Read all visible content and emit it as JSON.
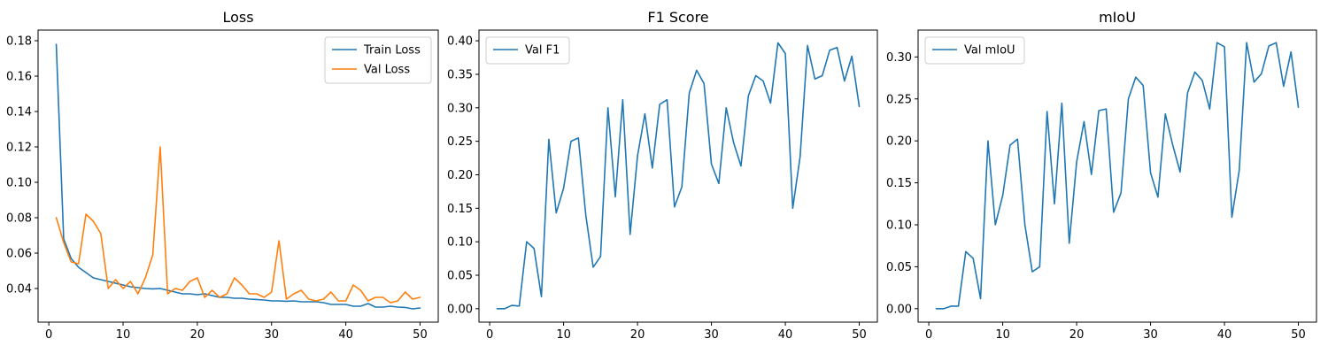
{
  "chart_data": [
    {
      "type": "line",
      "title": "Loss",
      "xlabel": "",
      "ylabel": "",
      "xlim": [
        -1.45,
        52.45
      ],
      "ylim": [
        0.021,
        0.186
      ],
      "xticks": [
        0,
        10,
        20,
        30,
        40,
        50
      ],
      "yticks": [
        0.04,
        0.06,
        0.08,
        0.1,
        0.12,
        0.14,
        0.16,
        0.18
      ],
      "ytick_labels": [
        "0.04",
        "0.06",
        "0.08",
        "0.10",
        "0.12",
        "0.14",
        "0.16",
        "0.18"
      ],
      "xtick_labels": [
        "0",
        "10",
        "20",
        "30",
        "40",
        "50"
      ],
      "grid": false,
      "legend_position": "top-right",
      "x": [
        1,
        2,
        3,
        4,
        5,
        6,
        7,
        8,
        9,
        10,
        11,
        12,
        13,
        14,
        15,
        16,
        17,
        18,
        19,
        20,
        21,
        22,
        23,
        24,
        25,
        26,
        27,
        28,
        29,
        30,
        31,
        32,
        33,
        34,
        35,
        36,
        37,
        38,
        39,
        40,
        41,
        42,
        43,
        44,
        45,
        46,
        47,
        48,
        49,
        50
      ],
      "series": [
        {
          "name": "Train Loss",
          "color": "#1f77b4",
          "values": [
            0.178,
            0.068,
            0.057,
            0.052,
            0.049,
            0.046,
            0.045,
            0.044,
            0.043,
            0.042,
            0.041,
            0.0405,
            0.04,
            0.0398,
            0.04,
            0.039,
            0.038,
            0.037,
            0.037,
            0.0365,
            0.037,
            0.036,
            0.035,
            0.035,
            0.0345,
            0.0345,
            0.034,
            0.0338,
            0.0335,
            0.033,
            0.033,
            0.0328,
            0.033,
            0.0325,
            0.0325,
            0.0325,
            0.032,
            0.031,
            0.031,
            0.031,
            0.03,
            0.03,
            0.0315,
            0.0295,
            0.0295,
            0.03,
            0.0295,
            0.0293,
            0.0285,
            0.029
          ]
        },
        {
          "name": "Val Loss",
          "color": "#ff7f0e",
          "values": [
            0.08,
            0.066,
            0.055,
            0.054,
            0.082,
            0.078,
            0.071,
            0.04,
            0.045,
            0.04,
            0.044,
            0.037,
            0.046,
            0.059,
            0.12,
            0.037,
            0.04,
            0.039,
            0.044,
            0.046,
            0.035,
            0.039,
            0.035,
            0.037,
            0.046,
            0.042,
            0.037,
            0.037,
            0.035,
            0.038,
            0.067,
            0.034,
            0.037,
            0.039,
            0.034,
            0.033,
            0.034,
            0.038,
            0.033,
            0.033,
            0.042,
            0.039,
            0.033,
            0.035,
            0.035,
            0.032,
            0.033,
            0.038,
            0.034,
            0.035
          ]
        }
      ]
    },
    {
      "type": "line",
      "title": "F1 Score",
      "xlabel": "",
      "ylabel": "",
      "xlim": [
        -1.45,
        52.45
      ],
      "ylim": [
        -0.02,
        0.416
      ],
      "xticks": [
        0,
        10,
        20,
        30,
        40,
        50
      ],
      "yticks": [
        0.0,
        0.05,
        0.1,
        0.15,
        0.2,
        0.25,
        0.3,
        0.35,
        0.4
      ],
      "ytick_labels": [
        "0.00",
        "0.05",
        "0.10",
        "0.15",
        "0.20",
        "0.25",
        "0.30",
        "0.35",
        "0.40"
      ],
      "xtick_labels": [
        "0",
        "10",
        "20",
        "30",
        "40",
        "50"
      ],
      "grid": false,
      "legend_position": "top-left",
      "x": [
        1,
        2,
        3,
        4,
        5,
        6,
        7,
        8,
        9,
        10,
        11,
        12,
        13,
        14,
        15,
        16,
        17,
        18,
        19,
        20,
        21,
        22,
        23,
        24,
        25,
        26,
        27,
        28,
        29,
        30,
        31,
        32,
        33,
        34,
        35,
        36,
        37,
        38,
        39,
        40,
        41,
        42,
        43,
        44,
        45,
        46,
        47,
        48,
        49,
        50
      ],
      "series": [
        {
          "name": "Val F1",
          "color": "#1f77b4",
          "values": [
            0.0,
            0.0,
            0.005,
            0.004,
            0.1,
            0.09,
            0.018,
            0.253,
            0.143,
            0.18,
            0.25,
            0.255,
            0.14,
            0.062,
            0.078,
            0.3,
            0.167,
            0.312,
            0.111,
            0.228,
            0.291,
            0.21,
            0.305,
            0.312,
            0.152,
            0.182,
            0.322,
            0.356,
            0.336,
            0.216,
            0.187,
            0.3,
            0.248,
            0.213,
            0.318,
            0.348,
            0.34,
            0.307,
            0.397,
            0.381,
            0.15,
            0.227,
            0.393,
            0.343,
            0.348,
            0.386,
            0.39,
            0.34,
            0.377,
            0.302
          ]
        }
      ]
    },
    {
      "type": "line",
      "title": "mIoU",
      "xlabel": "",
      "ylabel": "",
      "xlim": [
        -1.45,
        52.45
      ],
      "ylim": [
        -0.016,
        0.332
      ],
      "xticks": [
        0,
        10,
        20,
        30,
        40,
        50
      ],
      "yticks": [
        0.0,
        0.05,
        0.1,
        0.15,
        0.2,
        0.25,
        0.3
      ],
      "ytick_labels": [
        "0.00",
        "0.05",
        "0.10",
        "0.15",
        "0.20",
        "0.25",
        "0.30"
      ],
      "xtick_labels": [
        "0",
        "10",
        "20",
        "30",
        "40",
        "50"
      ],
      "grid": false,
      "legend_position": "top-left",
      "x": [
        1,
        2,
        3,
        4,
        5,
        6,
        7,
        8,
        9,
        10,
        11,
        12,
        13,
        14,
        15,
        16,
        17,
        18,
        19,
        20,
        21,
        22,
        23,
        24,
        25,
        26,
        27,
        28,
        29,
        30,
        31,
        32,
        33,
        34,
        35,
        36,
        37,
        38,
        39,
        40,
        41,
        42,
        43,
        44,
        45,
        46,
        47,
        48,
        49,
        50
      ],
      "series": [
        {
          "name": "Val mIoU",
          "color": "#1f77b4",
          "values": [
            0.0,
            0.0,
            0.003,
            0.003,
            0.068,
            0.06,
            0.012,
            0.2,
            0.1,
            0.135,
            0.195,
            0.202,
            0.1,
            0.044,
            0.05,
            0.235,
            0.125,
            0.245,
            0.078,
            0.175,
            0.223,
            0.16,
            0.236,
            0.238,
            0.115,
            0.138,
            0.25,
            0.276,
            0.266,
            0.162,
            0.133,
            0.232,
            0.195,
            0.163,
            0.257,
            0.282,
            0.272,
            0.238,
            0.317,
            0.312,
            0.109,
            0.165,
            0.317,
            0.27,
            0.28,
            0.313,
            0.317,
            0.265,
            0.306,
            0.24
          ]
        }
      ]
    }
  ]
}
